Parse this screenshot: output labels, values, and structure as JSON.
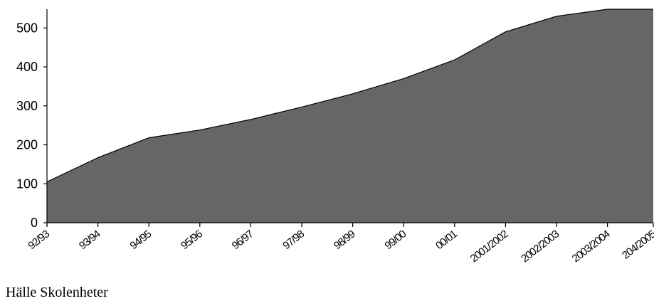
{
  "chart_data": {
    "type": "area",
    "title": "",
    "xlabel": "",
    "ylabel": "",
    "categories": [
      "92/93",
      "93/94",
      "94/95",
      "95/96",
      "96/97",
      "97/98",
      "98/99",
      "99/00",
      "00/01",
      "2001/2002",
      "2002/2003",
      "2003/2004",
      "204/2005"
    ],
    "x_values": [
      0,
      1,
      2,
      3,
      4,
      5,
      6,
      7,
      8,
      9,
      10,
      11,
      11.45,
      12,
      12.8
    ],
    "values": [
      105,
      167,
      218,
      238,
      265,
      297,
      331,
      370,
      418,
      490,
      530,
      548,
      548,
      548,
      548
    ],
    "yticks": [
      0,
      100,
      200,
      300,
      400,
      500
    ],
    "ylim": [
      0,
      548
    ],
    "grid": false,
    "legend": "none",
    "fill_color": "#666666",
    "line_color": "#000000"
  },
  "caption": "Hälle Skolenheter"
}
